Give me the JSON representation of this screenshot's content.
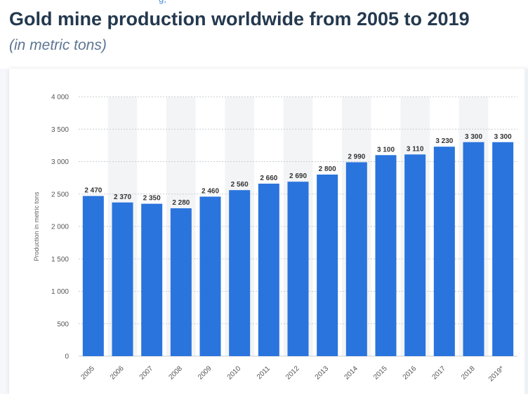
{
  "header": {
    "crumb_fragment": "g,",
    "title": "Gold mine production worldwide from 2005 to 2019",
    "subtitle": "(in metric tons)"
  },
  "colors": {
    "bar": "#2a74dd",
    "stripe": "#f3f4f6",
    "grid": "#c9cdd2",
    "title": "#24394f",
    "subtitle": "#5d7693",
    "axis_text": "#555555",
    "value_label": "#333333"
  },
  "chart_data": {
    "type": "bar",
    "title": "Gold mine production worldwide from 2005 to 2019",
    "subtitle": "(in metric tons)",
    "xlabel": "",
    "ylabel": "Production in metric tons",
    "categories": [
      "2005",
      "2006",
      "2007",
      "2008",
      "2009",
      "2010",
      "2011",
      "2012",
      "2013",
      "2014",
      "2015",
      "2016",
      "2017",
      "2018",
      "2019*"
    ],
    "values": [
      2470,
      2370,
      2350,
      2280,
      2460,
      2560,
      2660,
      2690,
      2800,
      2990,
      3100,
      3110,
      3230,
      3300,
      3300
    ],
    "value_labels": [
      "2 470",
      "2 370",
      "2 350",
      "2 280",
      "2 460",
      "2 560",
      "2 660",
      "2 690",
      "2 800",
      "2 990",
      "3 100",
      "3 110",
      "3 230",
      "3 300",
      "3 300"
    ],
    "ylim": [
      0,
      4000
    ],
    "yticks": [
      0,
      500,
      1000,
      1500,
      2000,
      2500,
      3000,
      3500,
      4000
    ],
    "ytick_labels": [
      "0",
      "500",
      "1 000",
      "1 500",
      "2 000",
      "2 500",
      "3 000",
      "3 500",
      "4 000"
    ],
    "grid": true,
    "legend": "none"
  }
}
